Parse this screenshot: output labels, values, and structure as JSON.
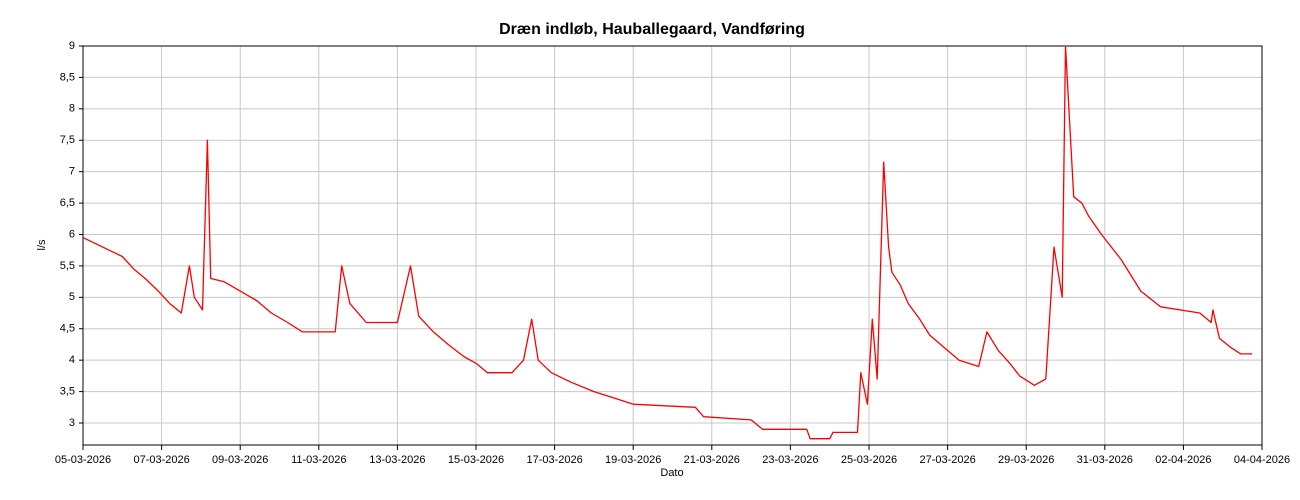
{
  "chart_data": {
    "type": "line",
    "title": "Dræn indløb, Hauballegaard, Vandføring",
    "xlabel": "Dato",
    "ylabel": "l/s",
    "color": "#ff0000",
    "grid": true,
    "xlim": [
      "2026-03-05T00:00",
      "2026-04-04T00:00"
    ],
    "xticks": [
      {
        "value": "2026-03-05T00:00",
        "label": "05-03-2026"
      },
      {
        "value": "2026-03-07T00:00",
        "label": "07-03-2026"
      },
      {
        "value": "2026-03-09T00:00",
        "label": "09-03-2026"
      },
      {
        "value": "2026-03-11T00:00",
        "label": "11-03-2026"
      },
      {
        "value": "2026-03-13T00:00",
        "label": "13-03-2026"
      },
      {
        "value": "2026-03-15T00:00",
        "label": "15-03-2026"
      },
      {
        "value": "2026-03-17T00:00",
        "label": "17-03-2026"
      },
      {
        "value": "2026-03-19T00:00",
        "label": "19-03-2026"
      },
      {
        "value": "2026-03-21T00:00",
        "label": "21-03-2026"
      },
      {
        "value": "2026-03-23T00:00",
        "label": "23-03-2026"
      },
      {
        "value": "2026-03-25T00:00",
        "label": "25-03-2026"
      },
      {
        "value": "2026-03-27T00:00",
        "label": "27-03-2026"
      },
      {
        "value": "2026-03-29T00:00",
        "label": "29-03-2026"
      },
      {
        "value": "2026-03-31T00:00",
        "label": "31-03-2026"
      },
      {
        "value": "2026-04-02T00:00",
        "label": "02-04-2026"
      },
      {
        "value": "2026-04-04T00:00",
        "label": "04-04-2026"
      }
    ],
    "ylim": [
      2.65,
      9
    ],
    "yticks": [
      3,
      {
        "value": 3.5,
        "label": "3,5"
      },
      4,
      {
        "value": 4.5,
        "label": "4,5"
      },
      5,
      {
        "value": 5.5,
        "label": "5,5"
      },
      6,
      {
        "value": 6.5,
        "label": "6,5"
      },
      7,
      {
        "value": 7.5,
        "label": "7,5"
      },
      8,
      {
        "value": 8.5,
        "label": "8,5"
      },
      9
    ],
    "x": [
      "2026-03-05T00:00",
      "2026-03-05T12:00",
      "2026-03-06T00:00",
      "2026-03-06T07:00",
      "2026-03-06T14:00",
      "2026-03-06T22:00",
      "2026-03-07T05:00",
      "2026-03-07T12:00",
      "2026-03-07T17:00",
      "2026-03-07T20:00",
      "2026-03-08T01:00",
      "2026-03-08T04:00",
      "2026-03-08T06:00",
      "2026-03-08T14:00",
      "2026-03-09T00:00",
      "2026-03-09T10:00",
      "2026-03-09T19:00",
      "2026-03-10T05:00",
      "2026-03-10T14:00",
      "2026-03-11T10:00",
      "2026-03-11T14:00",
      "2026-03-11T19:00",
      "2026-03-12T05:00",
      "2026-03-13T00:00",
      "2026-03-13T08:00",
      "2026-03-13T13:00",
      "2026-03-13T22:00",
      "2026-03-14T07:00",
      "2026-03-14T17:00",
      "2026-03-15T00:00",
      "2026-03-15T07:00",
      "2026-03-15T22:00",
      "2026-03-16T05:00",
      "2026-03-16T10:00",
      "2026-03-16T14:00",
      "2026-03-16T22:00",
      "2026-03-17T10:00",
      "2026-03-18T00:00",
      "2026-03-18T12:00",
      "2026-03-19T00:00",
      "2026-03-20T14:00",
      "2026-03-20T19:00",
      "2026-03-22T00:00",
      "2026-03-22T07:00",
      "2026-03-23T10:00",
      "2026-03-23T12:00",
      "2026-03-24T00:00",
      "2026-03-24T02:00",
      "2026-03-24T17:00",
      "2026-03-24T19:00",
      "2026-03-24T23:00",
      "2026-03-25T02:00",
      "2026-03-25T05:00",
      "2026-03-25T09:00",
      "2026-03-25T12:00",
      "2026-03-25T14:00",
      "2026-03-25T19:00",
      "2026-03-26T00:00",
      "2026-03-26T07:00",
      "2026-03-26T13:00",
      "2026-03-26T22:00",
      "2026-03-27T07:00",
      "2026-03-27T19:00",
      "2026-03-28T00:00",
      "2026-03-28T07:00",
      "2026-03-28T14:00",
      "2026-03-28T20:00",
      "2026-03-29T05:00",
      "2026-03-29T12:00",
      "2026-03-29T17:00",
      "2026-03-29T22:00",
      "2026-03-30T00:00",
      "2026-03-30T05:00",
      "2026-03-30T10:00",
      "2026-03-30T14:00",
      "2026-03-30T22:00",
      "2026-03-31T10:00",
      "2026-03-31T22:00",
      "2026-04-01T10:00",
      "2026-04-02T10:00",
      "2026-04-02T17:00",
      "2026-04-02T18:00",
      "2026-04-02T22:00",
      "2026-04-03T05:00",
      "2026-04-03T11:00",
      "2026-04-03T18:00"
    ],
    "values": [
      5.95,
      5.8,
      5.65,
      5.45,
      5.3,
      5.1,
      4.9,
      4.75,
      5.5,
      5.0,
      4.8,
      7.5,
      5.3,
      5.25,
      5.1,
      4.95,
      4.75,
      4.6,
      4.45,
      4.45,
      5.5,
      4.9,
      4.6,
      4.6,
      5.5,
      4.7,
      4.45,
      4.25,
      4.05,
      3.95,
      3.8,
      3.8,
      4.0,
      4.65,
      4.0,
      3.8,
      3.65,
      3.5,
      3.4,
      3.3,
      3.25,
      3.1,
      3.05,
      2.9,
      2.9,
      2.75,
      2.75,
      2.85,
      2.85,
      3.8,
      3.3,
      4.65,
      3.7,
      7.15,
      5.8,
      5.4,
      5.2,
      4.9,
      4.65,
      4.4,
      4.2,
      4.0,
      3.9,
      4.45,
      4.15,
      3.95,
      3.75,
      3.6,
      3.7,
      5.8,
      5.0,
      9.0,
      6.6,
      6.5,
      6.3,
      6.0,
      5.6,
      5.1,
      4.85,
      4.75,
      4.6,
      4.8,
      4.35,
      4.2,
      4.1,
      4.1
    ]
  }
}
